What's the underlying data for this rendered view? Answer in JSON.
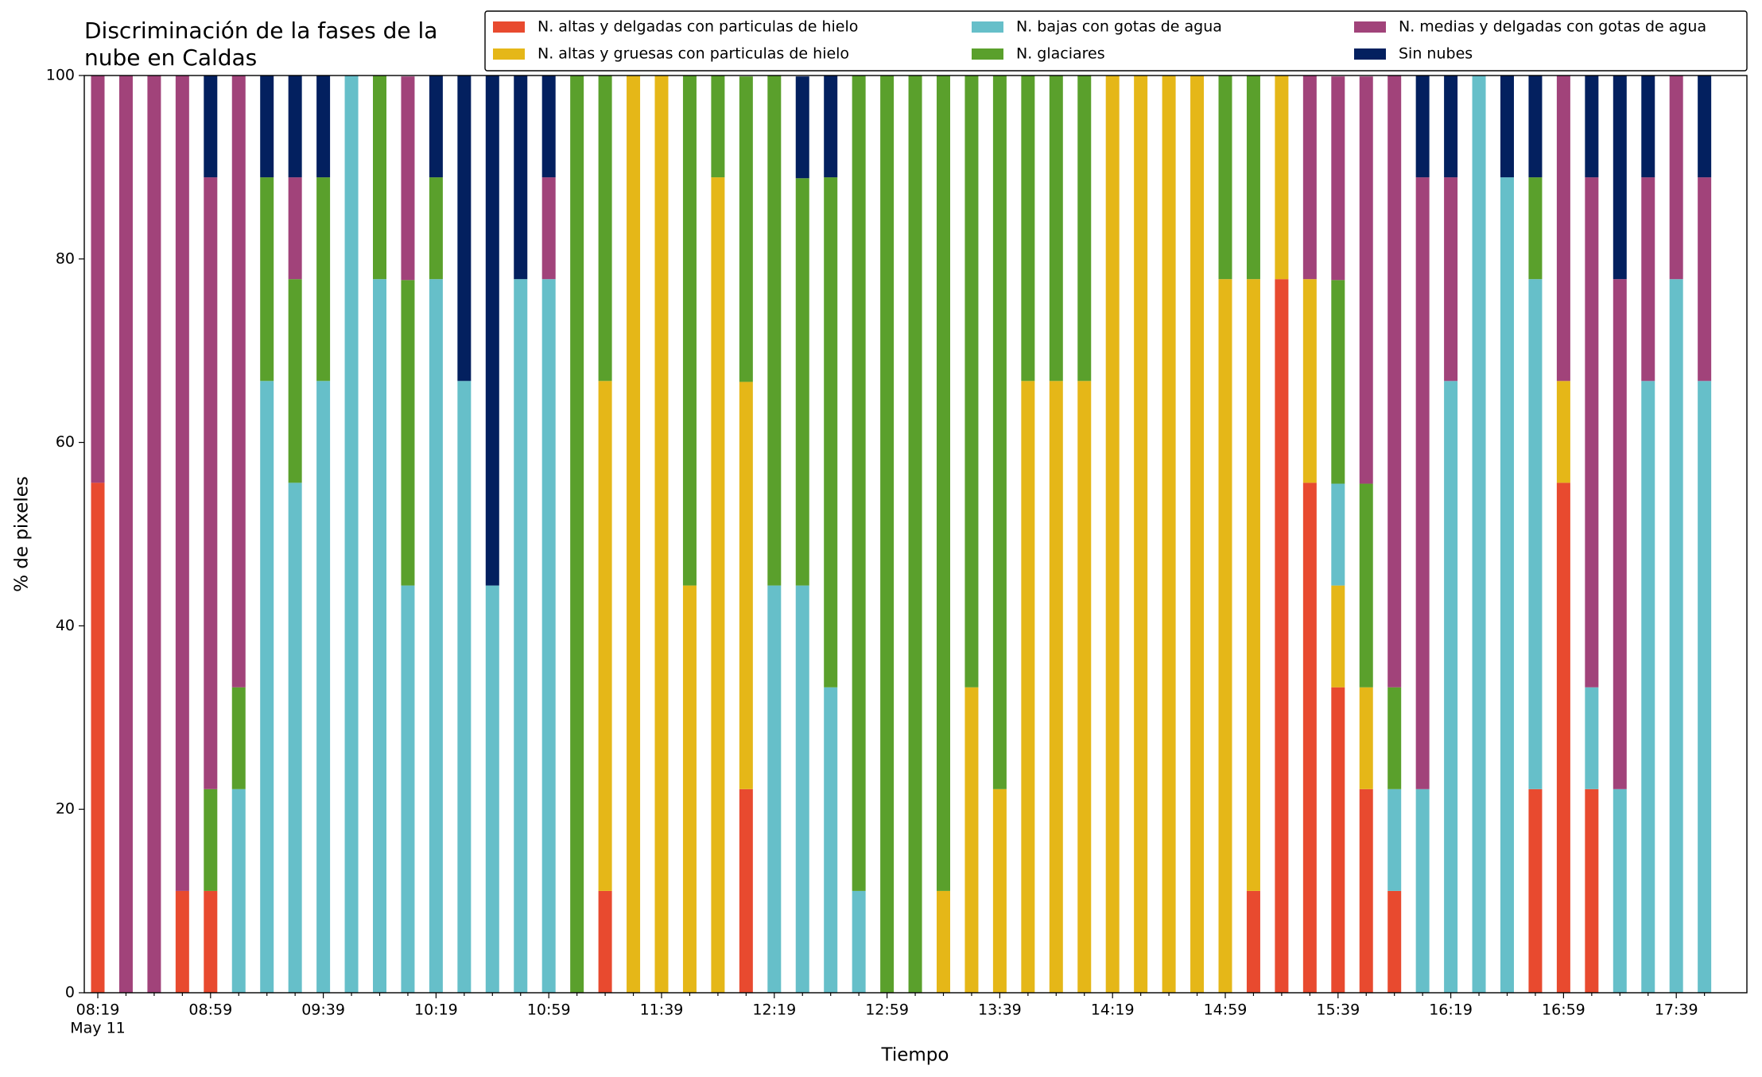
{
  "chart_data": {
    "type": "stacked_bar",
    "title": [
      "Discriminación de la fases de la",
      "nube en Caldas"
    ],
    "x_label": "Tiempo",
    "y_label": "% de pixeles",
    "date_label": "May 11",
    "categories": [
      "08:19",
      null,
      null,
      null,
      "08:59",
      null,
      null,
      null,
      "09:39",
      null,
      null,
      null,
      "10:19",
      null,
      null,
      null,
      "10:59",
      null,
      null,
      null,
      "11:39",
      null,
      null,
      null,
      "12:19",
      null,
      null,
      null,
      "12:59",
      null,
      null,
      null,
      "13:39",
      null,
      null,
      null,
      "14:19",
      null,
      null,
      null,
      "14:59",
      null,
      null,
      null,
      "15:39",
      null,
      null,
      null,
      "16:19",
      null,
      null,
      null,
      "16:59",
      null,
      null,
      null,
      "17:39",
      null
    ],
    "ylim": [
      0,
      100
    ],
    "yticks": [
      0,
      20,
      40,
      60,
      80,
      100
    ],
    "grid": false,
    "legend": "top",
    "series": [
      {
        "name": "N. altas y delgadas con particulas de hielo",
        "color": "#e84a2f",
        "values": [
          55.6,
          0,
          0,
          11.1,
          11.1,
          0,
          0,
          0,
          0,
          0,
          0,
          0,
          0,
          0,
          0,
          0,
          0,
          0,
          11.1,
          0,
          0,
          0,
          0,
          22.2,
          0,
          0,
          0,
          0,
          0,
          0,
          0,
          0,
          0,
          0,
          0,
          0,
          0,
          0,
          0,
          0,
          0,
          11.1,
          77.8,
          55.6,
          33.3,
          22.2,
          11.1,
          0,
          0,
          0,
          0,
          22.2,
          55.6,
          22.2,
          0,
          0,
          0,
          0
        ]
      },
      {
        "name": "N. altas y gruesas con particulas de hielo",
        "color": "#e5b718",
        "values": [
          0,
          0,
          0,
          0,
          0,
          0,
          0,
          0,
          0,
          0,
          0,
          0,
          0,
          0,
          0,
          0,
          0,
          0,
          55.6,
          100,
          100,
          44.4,
          88.9,
          44.4,
          0,
          0,
          0,
          0,
          0,
          0,
          11.1,
          33.3,
          22.2,
          66.7,
          66.7,
          66.7,
          100,
          100,
          100,
          100,
          77.8,
          66.7,
          22.2,
          22.2,
          11.1,
          11.1,
          0,
          0,
          0,
          0,
          0,
          0,
          11.1,
          0,
          0,
          0,
          0,
          0
        ]
      },
      {
        "name": "N. bajas con gotas de agua",
        "color": "#66bfc9",
        "values": [
          0,
          0,
          0,
          0,
          0,
          22.2,
          66.7,
          55.6,
          66.7,
          100,
          77.8,
          44.4,
          77.8,
          66.7,
          44.4,
          77.8,
          77.8,
          0,
          0,
          0,
          0,
          0,
          0,
          0,
          44.4,
          44.4,
          33.3,
          11.1,
          0,
          0,
          0,
          0,
          0,
          0,
          0,
          0,
          0,
          0,
          0,
          0,
          0,
          0,
          0,
          0,
          11.1,
          0,
          11.1,
          22.2,
          66.7,
          100,
          88.9,
          55.6,
          0,
          11.1,
          22.2,
          66.7,
          77.8,
          66.7
        ]
      },
      {
        "name": "N. glaciares",
        "color": "#5aa02c",
        "values": [
          0,
          0,
          0,
          0,
          11.1,
          11.1,
          22.2,
          22.2,
          22.2,
          0,
          22.2,
          33.3,
          11.1,
          0,
          0,
          0,
          0,
          100,
          33.3,
          0,
          0,
          55.6,
          11.1,
          33.3,
          55.6,
          44.4,
          55.6,
          88.9,
          100,
          100,
          88.9,
          66.7,
          77.8,
          33.3,
          33.3,
          33.3,
          0,
          0,
          0,
          0,
          22.2,
          22.2,
          0,
          0,
          22.2,
          22.2,
          11.1,
          0,
          0,
          0,
          0,
          11.1,
          0,
          0,
          0,
          0,
          0,
          0
        ]
      },
      {
        "name": "N. medias y delgadas con gotas de agua",
        "color": "#a1437a",
        "values": [
          44.4,
          100,
          100,
          88.9,
          66.7,
          66.7,
          0,
          11.1,
          0,
          0,
          0,
          22.2,
          0,
          0,
          0,
          0,
          11.1,
          0,
          0,
          0,
          0,
          0,
          0,
          0,
          0,
          0,
          0,
          0,
          0,
          0,
          0,
          0,
          0,
          0,
          0,
          0,
          0,
          0,
          0,
          0,
          0,
          0,
          0,
          22.2,
          22.2,
          44.4,
          66.7,
          66.7,
          22.2,
          0,
          0,
          0,
          33.3,
          55.6,
          55.6,
          22.2,
          22.2,
          22.2
        ]
      },
      {
        "name": "Sin nubes",
        "color": "#03205f",
        "values": [
          0,
          0,
          0,
          0,
          11.1,
          0,
          11.1,
          11.1,
          11.1,
          0,
          0,
          0,
          11.1,
          33.3,
          55.6,
          22.2,
          11.1,
          0,
          0,
          0,
          0,
          0,
          0,
          0,
          0,
          11.1,
          11.1,
          0,
          0,
          0,
          0,
          0,
          0,
          0,
          0,
          0,
          0,
          0,
          0,
          0,
          0,
          0,
          0,
          0,
          0,
          0,
          0,
          11.1,
          11.1,
          0,
          11.1,
          11.1,
          0,
          11.1,
          22.2,
          11.1,
          0,
          11.1
        ]
      }
    ]
  }
}
